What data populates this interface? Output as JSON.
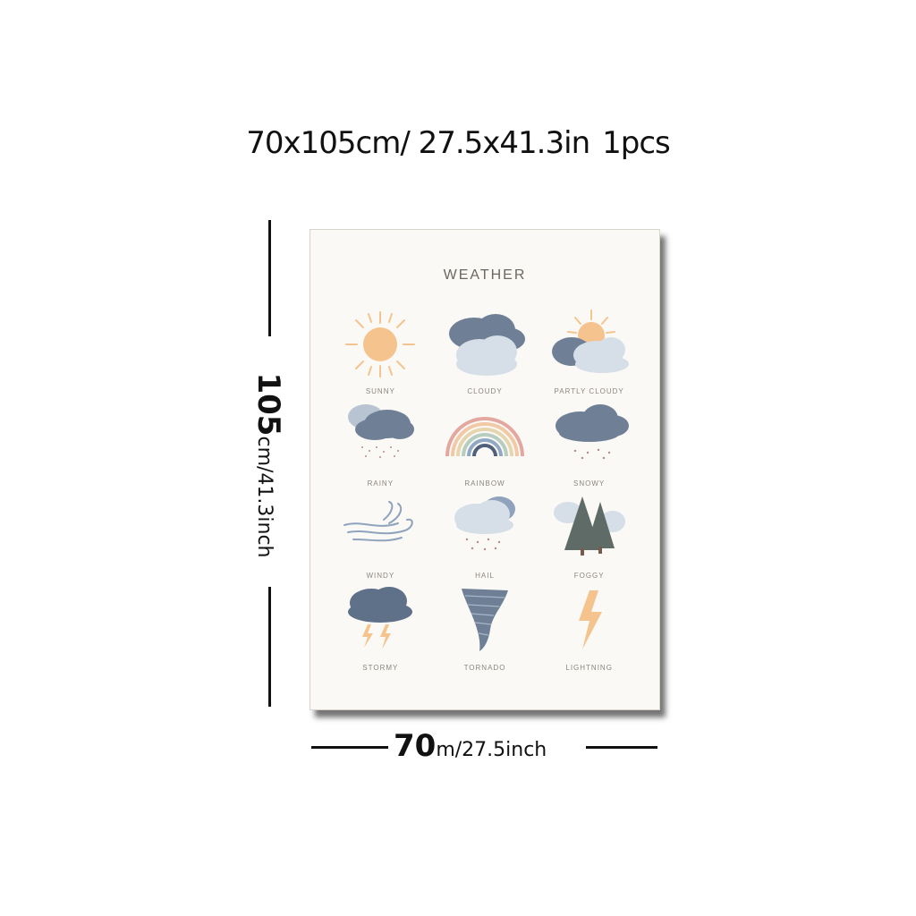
{
  "size_title": {
    "main": "70x105cm/ 27.5x41.3in",
    "pcs": "1pcs"
  },
  "height_label": {
    "big": "105",
    "small": "cm/41.3inch"
  },
  "width_label": {
    "big": "70",
    "small": "m/27.5inch"
  },
  "poster": {
    "title": "WEATHER",
    "items": [
      {
        "label": "SUNNY",
        "icon": "sun-icon"
      },
      {
        "label": "CLOUDY",
        "icon": "cloud-icon"
      },
      {
        "label": "PARTLY CLOUDY",
        "icon": "partly-cloudy-icon"
      },
      {
        "label": "RAINY",
        "icon": "rain-cloud-icon"
      },
      {
        "label": "RAINBOW",
        "icon": "rainbow-icon"
      },
      {
        "label": "SNOWY",
        "icon": "snow-cloud-icon"
      },
      {
        "label": "WINDY",
        "icon": "wind-icon"
      },
      {
        "label": "HAIL",
        "icon": "hail-cloud-icon"
      },
      {
        "label": "FOGGY",
        "icon": "foggy-trees-icon"
      },
      {
        "label": "STORMY",
        "icon": "storm-cloud-icon"
      },
      {
        "label": "TORNADO",
        "icon": "tornado-icon"
      },
      {
        "label": "LIGHTNING",
        "icon": "lightning-bolt-icon"
      }
    ]
  },
  "colors": {
    "sun": "#f5c48e",
    "cloud_dark": "#6f8096",
    "cloud_light": "#d6dee8",
    "tree": "#5e6b66"
  }
}
